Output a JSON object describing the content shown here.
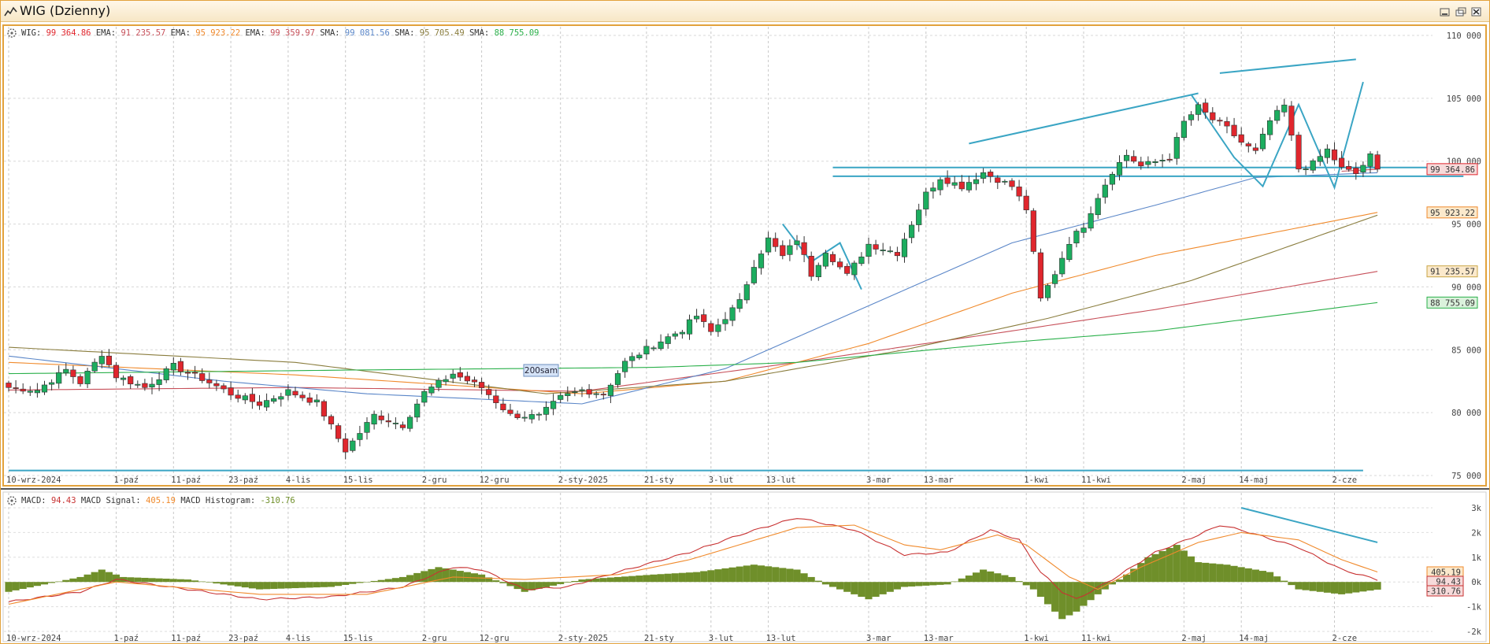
{
  "window": {
    "title": "WIG (Dzienny)"
  },
  "colors": {
    "up": "#1cad5f",
    "down": "#e0262d",
    "price_line": "#e0262d",
    "ema_short": "#c7505a",
    "ema_mid": "#f08a2c",
    "ema_long": "#5a86c8",
    "sma_short": "#5a86c8",
    "sma_mid": "#8a7d3e",
    "sma_long": "#2ab04a",
    "macd": "#c83232",
    "signal": "#f08a2c",
    "histogram": "#6f8f2a",
    "trendline": "#3aa5c4",
    "frame_border": "#e2a23c"
  },
  "price_pane": {
    "legend": [
      {
        "label": "WIG:",
        "value": "99 364.86",
        "color": "#e0262d"
      },
      {
        "label": "EMA:",
        "value": "91 235.57",
        "color": "#c7505a"
      },
      {
        "label": "EMA:",
        "value": "95 923.22",
        "color": "#f08a2c"
      },
      {
        "label": "EMA:",
        "value": "99 359.97",
        "color": "#c7505a"
      },
      {
        "label": "SMA:",
        "value": "99 081.56",
        "color": "#5a86c8"
      },
      {
        "label": "SMA:",
        "value": "95 705.49",
        "color": "#8a7d3e"
      },
      {
        "label": "SMA:",
        "value": "88 755.09",
        "color": "#2ab04a"
      }
    ],
    "y_ticks": [
      "75 000",
      "80 000",
      "85 000",
      "90 000",
      "95 000",
      "100 000",
      "105 000",
      "110 000"
    ],
    "last_value_tags": [
      {
        "value": "99 364.86",
        "level": 99364.86,
        "bg": "#f6dada",
        "border": "#e0262d"
      },
      {
        "value": "95 923.22",
        "level": 95923.22,
        "bg": "#fbe9cc",
        "border": "#f08a2c"
      },
      {
        "value": "91 235.57",
        "level": 91235.57,
        "bg": "#fbe9cc",
        "border": "#c9a544"
      },
      {
        "value": "88 755.09",
        "level": 88755.09,
        "bg": "#dbf2dc",
        "border": "#2ab04a"
      }
    ],
    "annotation": "200sam"
  },
  "macd_pane": {
    "legend": [
      {
        "label": "MACD:",
        "value": "94.43",
        "color": "#c83232"
      },
      {
        "label": "MACD Signal:",
        "value": "405.19",
        "color": "#f08a2c"
      },
      {
        "label": "MACD Histogram:",
        "value": "-310.76",
        "color": "#6f8f2a"
      }
    ],
    "y_ticks": [
      "-2k",
      "-1k",
      "0k",
      "1k",
      "2k",
      "3k"
    ],
    "last_value_tags": [
      {
        "value": "405.19",
        "level": 405.19,
        "bg": "#fbe9cc",
        "border": "#f08a2c"
      },
      {
        "value": "94.43",
        "level": 94.43,
        "bg": "#f6dada",
        "border": "#c83232"
      },
      {
        "value": "-310.76",
        "level": -310.76,
        "bg": "#f6dada",
        "border": "#c83232"
      }
    ]
  },
  "x_labels": [
    {
      "label": "10-wrz-2024",
      "index": 0
    },
    {
      "label": "1-paź",
      "index": 15
    },
    {
      "label": "11-paź",
      "index": 23
    },
    {
      "label": "23-paź",
      "index": 31
    },
    {
      "label": "4-lis",
      "index": 39
    },
    {
      "label": "15-lis",
      "index": 47
    },
    {
      "label": "2-gru",
      "index": 58
    },
    {
      "label": "12-gru",
      "index": 66
    },
    {
      "label": "2-sty-2025",
      "index": 77
    },
    {
      "label": "21-sty",
      "index": 89
    },
    {
      "label": "3-lut",
      "index": 98
    },
    {
      "label": "13-lut",
      "index": 106
    },
    {
      "label": "3-mar",
      "index": 120
    },
    {
      "label": "13-mar",
      "index": 128
    },
    {
      "label": "1-kwi",
      "index": 142
    },
    {
      "label": "11-kwi",
      "index": 150
    },
    {
      "label": "2-maj",
      "index": 164
    },
    {
      "label": "14-maj",
      "index": 172
    },
    {
      "label": "2-cze",
      "index": 185
    }
  ],
  "chart_data": [
    {
      "type": "candlestick",
      "title": "WIG (Dzienny)",
      "ylim": [
        75000,
        110000
      ],
      "grid": true,
      "close_anchors": [
        [
          0,
          82000
        ],
        [
          4,
          81800
        ],
        [
          8,
          83400
        ],
        [
          10,
          82400
        ],
        [
          13,
          84700
        ],
        [
          15,
          82900
        ],
        [
          19,
          82000
        ],
        [
          23,
          83700
        ],
        [
          27,
          82700
        ],
        [
          31,
          81500
        ],
        [
          35,
          80700
        ],
        [
          39,
          81700
        ],
        [
          43,
          80800
        ],
        [
          47,
          77000
        ],
        [
          51,
          79800
        ],
        [
          55,
          79000
        ],
        [
          58,
          81600
        ],
        [
          62,
          83100
        ],
        [
          66,
          82000
        ],
        [
          70,
          79800
        ],
        [
          74,
          79700
        ],
        [
          77,
          81200
        ],
        [
          80,
          81800
        ],
        [
          83,
          81500
        ],
        [
          86,
          84000
        ],
        [
          90,
          85400
        ],
        [
          94,
          86600
        ],
        [
          96,
          87700
        ],
        [
          98,
          86400
        ],
        [
          102,
          88800
        ],
        [
          104,
          91800
        ],
        [
          106,
          93800
        ],
        [
          108,
          92400
        ],
        [
          110,
          93800
        ],
        [
          112,
          91000
        ],
        [
          114,
          92900
        ],
        [
          117,
          90900
        ],
        [
          120,
          93400
        ],
        [
          124,
          92700
        ],
        [
          128,
          97400
        ],
        [
          130,
          98700
        ],
        [
          133,
          98000
        ],
        [
          136,
          99100
        ],
        [
          140,
          98000
        ],
        [
          142,
          96200
        ],
        [
          144,
          89000
        ],
        [
          146,
          91100
        ],
        [
          148,
          93600
        ],
        [
          150,
          94900
        ],
        [
          152,
          97200
        ],
        [
          154,
          99200
        ],
        [
          156,
          100500
        ],
        [
          158,
          99600
        ],
        [
          162,
          100300
        ],
        [
          164,
          103100
        ],
        [
          166,
          104300
        ],
        [
          168,
          103300
        ],
        [
          170,
          102600
        ],
        [
          172,
          101500
        ],
        [
          174,
          100700
        ],
        [
          176,
          103200
        ],
        [
          178,
          104400
        ],
        [
          180,
          99400
        ],
        [
          182,
          99800
        ],
        [
          184,
          100900
        ],
        [
          186,
          99400
        ],
        [
          188,
          99000
        ],
        [
          190,
          100400
        ],
        [
          191,
          99364.86
        ]
      ],
      "series_anchors": [
        {
          "name": "EMA",
          "value": "91 235.57",
          "color": "#c7505a",
          "points": [
            [
              0,
              81800
            ],
            [
              40,
              82000
            ],
            [
              80,
              81700
            ],
            [
              110,
              84000
            ],
            [
              140,
              86500
            ],
            [
              160,
              88200
            ],
            [
              191,
              91235.57
            ]
          ]
        },
        {
          "name": "EMA",
          "value": "95 923.22",
          "color": "#f08a2c",
          "points": [
            [
              0,
              84000
            ],
            [
              40,
              83000
            ],
            [
              80,
              81500
            ],
            [
              100,
              82500
            ],
            [
              120,
              85500
            ],
            [
              140,
              89500
            ],
            [
              160,
              92500
            ],
            [
              191,
              95923.22
            ]
          ]
        },
        {
          "name": "EMA",
          "value": "99 359.97",
          "color": "#c7505a",
          "points": [
            [
              186,
              99200
            ],
            [
              191,
              99359.97
            ]
          ]
        },
        {
          "name": "SMA",
          "value": "99 081.56",
          "color": "#5a86c8",
          "points": [
            [
              0,
              84500
            ],
            [
              30,
              82500
            ],
            [
              50,
              81500
            ],
            [
              80,
              80700
            ],
            [
              100,
              83500
            ],
            [
              120,
              88500
            ],
            [
              140,
              93500
            ],
            [
              160,
              96500
            ],
            [
              174,
              98700
            ],
            [
              191,
              99081.56
            ]
          ]
        },
        {
          "name": "SMA",
          "value": "95 705.49",
          "color": "#8a7d3e",
          "points": [
            [
              0,
              85200
            ],
            [
              40,
              84000
            ],
            [
              75,
              81500
            ],
            [
              100,
              82500
            ],
            [
              125,
              85000
            ],
            [
              145,
              87500
            ],
            [
              165,
              90500
            ],
            [
              191,
              95705.49
            ]
          ]
        },
        {
          "name": "SMA",
          "value": "88 755.09",
          "color": "#2ab04a",
          "points": [
            [
              0,
              83100
            ],
            [
              50,
              83400
            ],
            [
              90,
              83600
            ],
            [
              110,
              84000
            ],
            [
              140,
              85600
            ],
            [
              160,
              86500
            ],
            [
              191,
              88755.09
            ]
          ]
        }
      ],
      "drawings": [
        {
          "kind": "hline",
          "level": 99500,
          "from": 115,
          "to": 203
        },
        {
          "kind": "hline",
          "level": 98800,
          "from": 115,
          "to": 203
        },
        {
          "kind": "hline",
          "level": 75400,
          "from": 0,
          "to": 189
        },
        {
          "kind": "segment",
          "from": [
            134,
            101400
          ],
          "to": [
            166,
            105400
          ]
        },
        {
          "kind": "segment",
          "from": [
            169,
            107000
          ],
          "to": [
            188,
            108100
          ]
        },
        {
          "kind": "polyline",
          "points": [
            [
              165,
              105300
            ],
            [
              171,
              100300
            ],
            [
              175,
              98000
            ],
            [
              180,
              104500
            ],
            [
              185,
              97900
            ],
            [
              189,
              106300
            ]
          ]
        },
        {
          "kind": "polyline",
          "points": [
            [
              108,
              95000
            ],
            [
              112,
              92000
            ],
            [
              116,
              93500
            ],
            [
              119,
              89800
            ]
          ]
        }
      ]
    },
    {
      "type": "line",
      "title": "MACD",
      "ylim": [
        -2000,
        3000
      ],
      "series": [
        {
          "name": "MACD",
          "value": "94.43",
          "points": [
            [
              0,
              -800
            ],
            [
              10,
              -400
            ],
            [
              15,
              100
            ],
            [
              20,
              -100
            ],
            [
              35,
              -700
            ],
            [
              45,
              -600
            ],
            [
              55,
              -200
            ],
            [
              62,
              600
            ],
            [
              66,
              500
            ],
            [
              72,
              -300
            ],
            [
              78,
              -200
            ],
            [
              85,
              400
            ],
            [
              95,
              1200
            ],
            [
              103,
              2000
            ],
            [
              110,
              2600
            ],
            [
              118,
              2100
            ],
            [
              125,
              1100
            ],
            [
              131,
              1200
            ],
            [
              137,
              2100
            ],
            [
              141,
              1700
            ],
            [
              144,
              400
            ],
            [
              147,
              -400
            ],
            [
              149,
              -700
            ],
            [
              154,
              100
            ],
            [
              160,
              1200
            ],
            [
              166,
              1900
            ],
            [
              169,
              2300
            ],
            [
              172,
              2100
            ],
            [
              180,
              1400
            ],
            [
              186,
              500
            ],
            [
              191,
              94.43
            ]
          ]
        },
        {
          "name": "MACD Signal",
          "value": "405.19",
          "points": [
            [
              0,
              -900
            ],
            [
              15,
              0
            ],
            [
              35,
              -500
            ],
            [
              50,
              -500
            ],
            [
              62,
              200
            ],
            [
              72,
              100
            ],
            [
              85,
              300
            ],
            [
              95,
              900
            ],
            [
              110,
              2200
            ],
            [
              118,
              2300
            ],
            [
              125,
              1500
            ],
            [
              130,
              1300
            ],
            [
              138,
              1900
            ],
            [
              142,
              1500
            ],
            [
              148,
              200
            ],
            [
              152,
              -300
            ],
            [
              158,
              600
            ],
            [
              166,
              1600
            ],
            [
              172,
              2000
            ],
            [
              180,
              1700
            ],
            [
              186,
              900
            ],
            [
              191,
              405.19
            ]
          ]
        },
        {
          "name": "MACD Histogram",
          "value": "-310.76",
          "kind": "bars",
          "points": [
            [
              0,
              -400
            ],
            [
              10,
              200
            ],
            [
              13,
              500
            ],
            [
              16,
              200
            ],
            [
              25,
              100
            ],
            [
              35,
              -300
            ],
            [
              45,
              -200
            ],
            [
              55,
              200
            ],
            [
              60,
              600
            ],
            [
              66,
              300
            ],
            [
              72,
              -400
            ],
            [
              80,
              100
            ],
            [
              90,
              300
            ],
            [
              96,
              400
            ],
            [
              104,
              700
            ],
            [
              110,
              500
            ],
            [
              114,
              -100
            ],
            [
              120,
              -700
            ],
            [
              125,
              -200
            ],
            [
              131,
              -100
            ],
            [
              136,
              500
            ],
            [
              140,
              200
            ],
            [
              143,
              -300
            ],
            [
              147,
              -1500
            ],
            [
              149,
              -1200
            ],
            [
              152,
              -500
            ],
            [
              156,
              300
            ],
            [
              159,
              1000
            ],
            [
              163,
              1500
            ],
            [
              166,
              800
            ],
            [
              170,
              700
            ],
            [
              176,
              400
            ],
            [
              180,
              -300
            ],
            [
              186,
              -500
            ],
            [
              191,
              -310.76
            ]
          ]
        }
      ],
      "drawings": [
        {
          "kind": "segment",
          "from": [
            172,
            3000
          ],
          "to": [
            191,
            1600
          ]
        }
      ]
    }
  ]
}
